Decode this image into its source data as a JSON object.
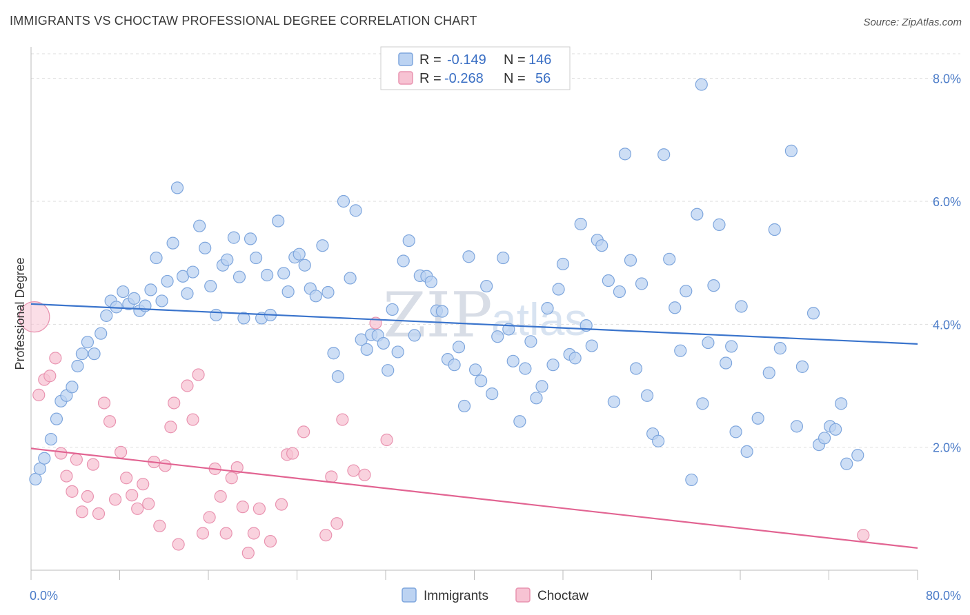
{
  "title": "IMMIGRANTS VS CHOCTAW PROFESSIONAL DEGREE CORRELATION CHART",
  "source": "Source: ZipAtlas.com",
  "watermark": {
    "zip": "ZIP",
    "atlas": "atlas"
  },
  "colors": {
    "immigrants_fill": "#bcd3f2",
    "immigrants_stroke": "#7ea6dd",
    "immigrants_line": "#3a74cc",
    "choctaw_fill": "#f7c3d3",
    "choctaw_stroke": "#e993b0",
    "choctaw_line": "#e26492",
    "tick": "#4a7bc8",
    "grid": "#dddddd"
  },
  "legend": {
    "rows": [
      {
        "r_label": "R =",
        "r_value": "-0.149",
        "n_label": "N =",
        "n_value": "146"
      },
      {
        "r_label": "R =",
        "r_value": "-0.268",
        "n_label": "N =",
        "n_value": "56"
      }
    ]
  },
  "chart_data": {
    "type": "scatter",
    "title": "IMMIGRANTS VS CHOCTAW PROFESSIONAL DEGREE CORRELATION CHART",
    "xlabel": "",
    "ylabel": "Professional Degree",
    "xlim": [
      0,
      80
    ],
    "ylim": [
      0,
      8.4
    ],
    "x_tick_labels": [
      "0.0%",
      "80.0%"
    ],
    "y_ticks": [
      2,
      4,
      6,
      8
    ],
    "y_tick_labels": [
      "2.0%",
      "4.0%",
      "6.0%",
      "8.0%"
    ],
    "grid": "horizontal dashed",
    "legend_position": "top-center",
    "series": [
      {
        "name": "Immigrants",
        "trend": {
          "x": [
            0,
            80
          ],
          "y": [
            4.33,
            3.68
          ]
        },
        "points": [
          [
            0.4,
            1.48
          ],
          [
            0.8,
            1.65
          ],
          [
            1.2,
            1.82
          ],
          [
            1.8,
            2.13
          ],
          [
            2.3,
            2.46
          ],
          [
            2.7,
            2.75
          ],
          [
            3.2,
            2.84
          ],
          [
            3.7,
            2.98
          ],
          [
            4.2,
            3.32
          ],
          [
            4.6,
            3.52
          ],
          [
            5.1,
            3.71
          ],
          [
            5.7,
            3.52
          ],
          [
            6.3,
            3.85
          ],
          [
            6.8,
            4.14
          ],
          [
            7.2,
            4.38
          ],
          [
            7.7,
            4.28
          ],
          [
            8.3,
            4.53
          ],
          [
            8.8,
            4.33
          ],
          [
            9.3,
            4.42
          ],
          [
            9.8,
            4.22
          ],
          [
            10.3,
            4.3
          ],
          [
            10.8,
            4.56
          ],
          [
            11.3,
            5.08
          ],
          [
            11.8,
            4.38
          ],
          [
            12.3,
            4.7
          ],
          [
            12.8,
            5.32
          ],
          [
            13.2,
            6.22
          ],
          [
            13.7,
            4.78
          ],
          [
            14.1,
            4.5
          ],
          [
            14.6,
            4.85
          ],
          [
            15.2,
            5.6
          ],
          [
            15.7,
            5.24
          ],
          [
            16.2,
            4.62
          ],
          [
            16.7,
            4.15
          ],
          [
            17.3,
            4.96
          ],
          [
            17.7,
            5.05
          ],
          [
            18.3,
            5.41
          ],
          [
            18.8,
            4.77
          ],
          [
            19.2,
            4.1
          ],
          [
            19.8,
            5.39
          ],
          [
            20.3,
            5.08
          ],
          [
            20.8,
            4.1
          ],
          [
            21.3,
            4.8
          ],
          [
            21.6,
            4.15
          ],
          [
            22.3,
            5.68
          ],
          [
            22.8,
            4.83
          ],
          [
            23.2,
            4.53
          ],
          [
            23.8,
            5.09
          ],
          [
            24.2,
            5.14
          ],
          [
            24.7,
            4.96
          ],
          [
            25.2,
            4.58
          ],
          [
            25.7,
            4.46
          ],
          [
            26.3,
            5.28
          ],
          [
            26.8,
            4.52
          ],
          [
            27.3,
            3.53
          ],
          [
            27.7,
            3.15
          ],
          [
            28.2,
            6.0
          ],
          [
            28.8,
            4.75
          ],
          [
            29.3,
            5.85
          ],
          [
            29.8,
            3.75
          ],
          [
            30.3,
            3.59
          ],
          [
            30.7,
            3.83
          ],
          [
            31.3,
            3.82
          ],
          [
            31.8,
            3.69
          ],
          [
            32.2,
            3.25
          ],
          [
            32.6,
            4.24
          ],
          [
            33.1,
            3.55
          ],
          [
            33.6,
            5.03
          ],
          [
            34.1,
            5.36
          ],
          [
            34.6,
            3.82
          ],
          [
            35.1,
            4.79
          ],
          [
            35.7,
            4.78
          ],
          [
            36.1,
            4.69
          ],
          [
            36.6,
            4.22
          ],
          [
            37.1,
            4.21
          ],
          [
            37.6,
            3.43
          ],
          [
            38.2,
            3.34
          ],
          [
            38.6,
            3.63
          ],
          [
            39.1,
            2.67
          ],
          [
            39.5,
            5.1
          ],
          [
            40.1,
            3.26
          ],
          [
            40.6,
            3.08
          ],
          [
            41.1,
            4.62
          ],
          [
            41.6,
            2.87
          ],
          [
            42.1,
            3.8
          ],
          [
            42.6,
            5.08
          ],
          [
            43.1,
            3.92
          ],
          [
            43.5,
            3.4
          ],
          [
            44.1,
            2.42
          ],
          [
            44.6,
            3.28
          ],
          [
            45.1,
            3.72
          ],
          [
            45.6,
            2.8
          ],
          [
            46.1,
            2.99
          ],
          [
            46.6,
            4.26
          ],
          [
            47.1,
            3.34
          ],
          [
            47.6,
            4.57
          ],
          [
            48.0,
            4.98
          ],
          [
            48.6,
            3.51
          ],
          [
            49.1,
            3.45
          ],
          [
            49.6,
            5.63
          ],
          [
            50.1,
            3.98
          ],
          [
            50.6,
            3.65
          ],
          [
            51.1,
            5.37
          ],
          [
            51.5,
            5.28
          ],
          [
            52.1,
            4.71
          ],
          [
            52.6,
            2.74
          ],
          [
            53.1,
            4.53
          ],
          [
            53.6,
            6.77
          ],
          [
            54.1,
            5.04
          ],
          [
            54.6,
            3.28
          ],
          [
            55.1,
            4.66
          ],
          [
            55.6,
            2.84
          ],
          [
            56.1,
            2.22
          ],
          [
            56.6,
            2.1
          ],
          [
            57.1,
            6.76
          ],
          [
            57.6,
            5.06
          ],
          [
            58.1,
            4.27
          ],
          [
            58.6,
            3.57
          ],
          [
            59.1,
            4.54
          ],
          [
            59.6,
            1.47
          ],
          [
            60.1,
            5.79
          ],
          [
            60.6,
            2.71
          ],
          [
            61.1,
            3.7
          ],
          [
            61.6,
            4.63
          ],
          [
            62.1,
            5.62
          ],
          [
            62.7,
            3.37
          ],
          [
            63.2,
            3.64
          ],
          [
            63.6,
            2.25
          ],
          [
            64.1,
            4.29
          ],
          [
            64.6,
            1.93
          ],
          [
            65.6,
            2.47
          ],
          [
            66.6,
            3.21
          ],
          [
            67.1,
            5.54
          ],
          [
            67.6,
            3.61
          ],
          [
            68.6,
            6.82
          ],
          [
            69.1,
            2.34
          ],
          [
            69.6,
            3.31
          ],
          [
            70.6,
            4.18
          ],
          [
            71.1,
            2.04
          ],
          [
            71.6,
            2.15
          ],
          [
            72.1,
            2.34
          ],
          [
            72.6,
            2.29
          ],
          [
            73.1,
            2.71
          ],
          [
            73.6,
            1.73
          ],
          [
            74.6,
            1.87
          ],
          [
            60.5,
            7.9
          ]
        ]
      },
      {
        "name": "Choctaw",
        "trend": {
          "x": [
            0,
            80
          ],
          "y": [
            1.98,
            0.36
          ]
        },
        "points": [
          [
            0.3,
            4.12
          ],
          [
            0.7,
            2.85
          ],
          [
            1.2,
            3.1
          ],
          [
            1.7,
            3.16
          ],
          [
            2.2,
            3.45
          ],
          [
            2.7,
            1.9
          ],
          [
            3.2,
            1.53
          ],
          [
            3.7,
            1.28
          ],
          [
            4.1,
            1.8
          ],
          [
            4.6,
            0.95
          ],
          [
            5.1,
            1.2
          ],
          [
            5.6,
            1.72
          ],
          [
            6.1,
            0.92
          ],
          [
            6.6,
            2.72
          ],
          [
            7.1,
            2.42
          ],
          [
            7.6,
            1.15
          ],
          [
            8.1,
            1.92
          ],
          [
            8.6,
            1.5
          ],
          [
            9.1,
            1.22
          ],
          [
            9.6,
            1.0
          ],
          [
            10.1,
            1.4
          ],
          [
            10.6,
            1.08
          ],
          [
            11.1,
            1.76
          ],
          [
            11.6,
            0.72
          ],
          [
            12.1,
            1.7
          ],
          [
            12.6,
            2.33
          ],
          [
            12.9,
            2.72
          ],
          [
            13.3,
            0.42
          ],
          [
            14.1,
            3.0
          ],
          [
            14.6,
            2.45
          ],
          [
            15.1,
            3.18
          ],
          [
            15.5,
            0.6
          ],
          [
            16.1,
            0.86
          ],
          [
            16.6,
            1.65
          ],
          [
            17.1,
            1.2
          ],
          [
            17.6,
            0.6
          ],
          [
            18.1,
            1.5
          ],
          [
            18.6,
            1.67
          ],
          [
            19.1,
            1.03
          ],
          [
            19.6,
            0.28
          ],
          [
            20.1,
            0.6
          ],
          [
            20.6,
            1.0
          ],
          [
            21.6,
            0.47
          ],
          [
            22.6,
            1.07
          ],
          [
            23.1,
            1.88
          ],
          [
            23.6,
            1.9
          ],
          [
            24.6,
            2.25
          ],
          [
            26.6,
            0.57
          ],
          [
            27.1,
            1.52
          ],
          [
            27.6,
            0.76
          ],
          [
            28.1,
            2.45
          ],
          [
            29.1,
            1.62
          ],
          [
            30.1,
            1.55
          ],
          [
            31.1,
            4.02
          ],
          [
            32.1,
            2.12
          ],
          [
            75.1,
            0.57
          ]
        ]
      }
    ]
  },
  "bottom_legend": [
    "Immigrants",
    "Choctaw"
  ]
}
